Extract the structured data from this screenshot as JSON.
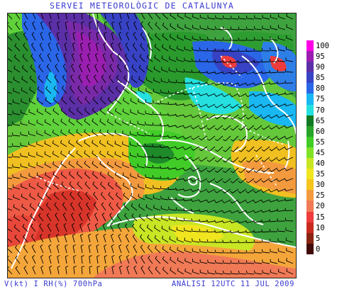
{
  "header": {
    "title": "SERVEI METEOROLÒGIC DE CATALUNYA"
  },
  "footer": {
    "variables": "V(kt) I RH(%) 700hPa",
    "analysis": "ANÀLISI 12UTC 11 JUL 2009"
  },
  "legend": {
    "title": "",
    "units": "%",
    "steps": [
      {
        "label": "100",
        "color": "#ff00e6"
      },
      {
        "label": "95",
        "color": "#9a1fb0"
      },
      {
        "label": "90",
        "color": "#5b2fa6"
      },
      {
        "label": "85",
        "color": "#3743c4"
      },
      {
        "label": "80",
        "color": "#2a66e8"
      },
      {
        "label": "75",
        "color": "#19b8f2"
      },
      {
        "label": "70",
        "color": "#25e0df"
      },
      {
        "label": "65",
        "color": "#127a22"
      },
      {
        "label": "60",
        "color": "#29a32a"
      },
      {
        "label": "55",
        "color": "#41cc28"
      },
      {
        "label": "45",
        "color": "#7fe227"
      },
      {
        "label": "40",
        "color": "#c8e624"
      },
      {
        "label": "35",
        "color": "#f0e51f"
      },
      {
        "label": "30",
        "color": "#f6c51d"
      },
      {
        "label": "25",
        "color": "#f39a3e"
      },
      {
        "label": "20",
        "color": "#f07a56"
      },
      {
        "label": "15",
        "color": "#ee3c3c"
      },
      {
        "label": "10",
        "color": "#c92c1f"
      },
      {
        "label": "5",
        "color": "#8a2412"
      },
      {
        "label": "0",
        "color": "#430a0a"
      }
    ]
  },
  "map": {
    "field": "relative-humidity-700hPa",
    "overlay": "wind-barbs",
    "coastline_color": "#ffffff",
    "barb_color": "#000000"
  }
}
